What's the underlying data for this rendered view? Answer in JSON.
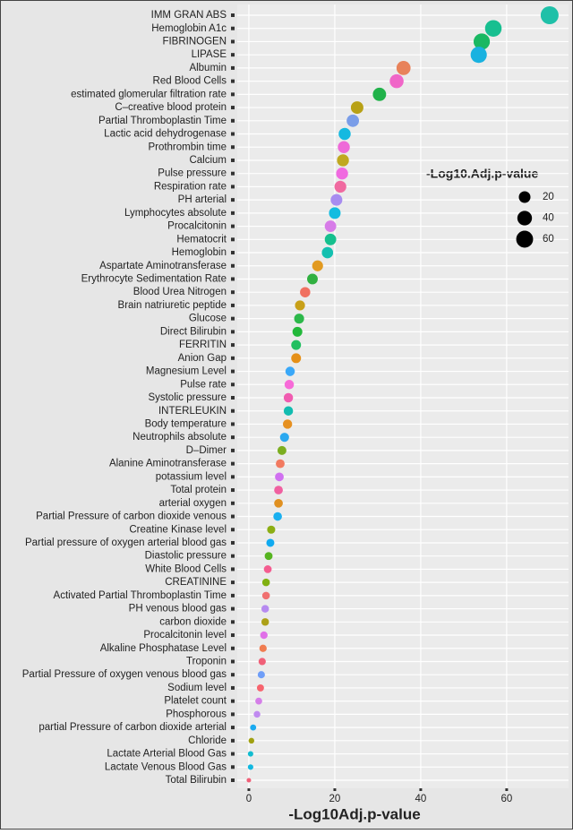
{
  "chart_data": {
    "type": "dot",
    "x_label": "-Log10Adj.p-value",
    "categories": [
      "IMM GRAN ABS",
      "Hemoglobin A1c",
      "FIBRINOGEN",
      "LIPASE",
      "Albumin",
      "Red Blood Cells",
      "estimated glomerular filtration rate",
      "C–creative blood protein",
      "Partial Thromboplastin Time",
      "Lactic acid dehydrogenase",
      "Prothrombin time",
      "Calcium",
      "Pulse pressure",
      "Respiration rate",
      "PH arterial",
      "Lymphocytes absolute",
      "Procalcitonin",
      "Hematocrit",
      "Hemoglobin",
      "Aspartate Aminotransferase",
      "Erythrocyte Sedimentation Rate",
      "Blood Urea Nitrogen",
      "Brain natriuretic peptide",
      "Glucose",
      "Direct Bilirubin",
      "FERRITIN",
      "Anion Gap",
      "Magnesium Level",
      "Pulse rate",
      "Systolic pressure",
      "INTERLEUKIN",
      "Body temperature",
      "Neutrophils absolute",
      "D–Dimer",
      "Alanine Aminotransferase",
      "potassium level",
      "Total protein",
      "arterial oxygen",
      "Partial Pressure of carbon dioxide venous",
      "Creatine Kinase level",
      "Partial pressure of oxygen arterial blood gas",
      "Diastolic pressure",
      "White Blood Cells",
      "CREATININE",
      "Activated Partial Thromboplastin Time",
      "PH venous blood gas",
      "carbon dioxide",
      "Procalcitonin level",
      "Alkaline Phosphatase Level",
      "Troponin",
      "Partial Pressure of oxygen venous blood gas",
      "Sodium level",
      "Platelet count",
      "Phosphorous",
      "partial Pressure of carbon dioxide arterial",
      "Chloride",
      "Lactate Arterial Blood Gas",
      "Lactate Venous Blood Gas",
      "Total Bilirubin"
    ],
    "values": [
      70,
      56.9,
      54.2,
      53.5,
      36,
      34.4,
      30.4,
      25.2,
      24.2,
      22.3,
      22.1,
      21.9,
      21.7,
      21.3,
      20.4,
      20,
      19,
      19,
      18.3,
      16,
      14.8,
      13.1,
      11.9,
      11.7,
      11.3,
      11,
      11,
      9.6,
      9.4,
      9.2,
      9.2,
      9,
      8.3,
      7.7,
      7.3,
      7.1,
      6.9,
      6.9,
      6.7,
      5.2,
      5,
      4.6,
      4.4,
      4,
      4,
      3.8,
      3.8,
      3.5,
      3.3,
      3.1,
      2.9,
      2.7,
      2.3,
      1.9,
      1,
      0.6,
      0.4,
      0.4,
      0
    ],
    "colors": [
      "#1fc0a8",
      "#17bf90",
      "#19b862",
      "#19b2e0",
      "#e8825a",
      "#f066c8",
      "#21b24a",
      "#b8a116",
      "#7a9de8",
      "#15b9e0",
      "#ee6ad8",
      "#c0a820",
      "#f06ae0",
      "#f06aa0",
      "#a78cf0",
      "#12bce0",
      "#d77ce8",
      "#16c08e",
      "#14c0b0",
      "#e29a20",
      "#30b040",
      "#f07060",
      "#c8a018",
      "#2cb84a",
      "#22b83a",
      "#21bf60",
      "#e59018",
      "#3aa8f8",
      "#f76ad8",
      "#f05cb0",
      "#12bcb0",
      "#e69020",
      "#2aa8f0",
      "#7cae20",
      "#f27a60",
      "#d070f0",
      "#f060a0",
      "#e09020",
      "#1ab0f0",
      "#8cae14",
      "#10aaf0",
      "#56b420",
      "#f45c90",
      "#80b010",
      "#f07070",
      "#b68af0",
      "#aca018",
      "#e070e8",
      "#f07c50",
      "#f06078",
      "#6f9ef8",
      "#f7646e",
      "#d57fe8",
      "#c08af0",
      "#1aaaf0",
      "#a0a010",
      "#12bcd0",
      "#12b8e0",
      "#f06078"
    ],
    "xlim": [
      -2.7,
      74.4
    ],
    "xticks": [
      0,
      20,
      40,
      60
    ],
    "grid": true,
    "size_legend": {
      "title": "-Log10.Adj.p-value",
      "values": [
        20,
        40,
        60
      ]
    }
  }
}
